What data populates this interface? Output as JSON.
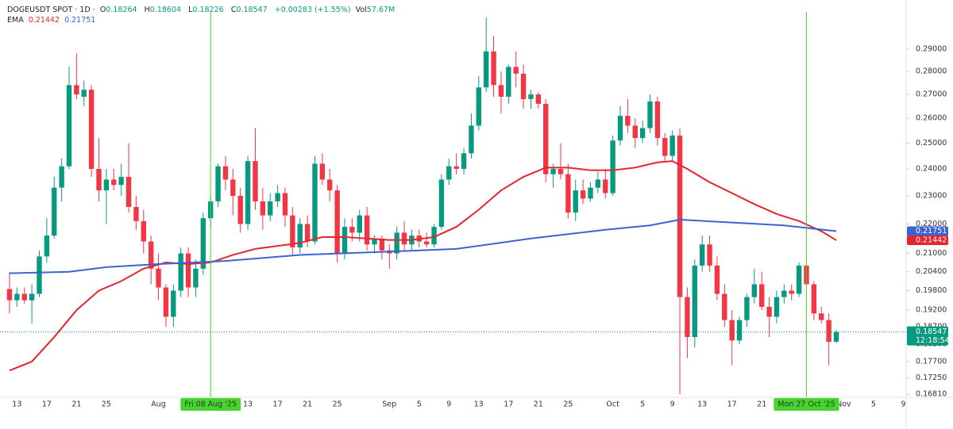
{
  "chart_data": {
    "type": "candlestick",
    "title": "DOGEUSDT SPOT · 1D ·",
    "ohlc_prefixes": [
      "O",
      "H",
      "L",
      "C"
    ],
    "change_label": "+0.00283 (+1.55%)",
    "volume_label": "Vol",
    "volume": "57.67M",
    "indicator_label": "EMA",
    "countdown": "12:18:54",
    "log_scale": true,
    "up_color": "#089981",
    "down_color": "#f23645",
    "x": [
      "2025-07-12",
      "2025-07-13",
      "2025-07-14",
      "2025-07-15",
      "2025-07-16",
      "2025-07-17",
      "2025-07-18",
      "2025-07-19",
      "2025-07-20",
      "2025-07-21",
      "2025-07-22",
      "2025-07-23",
      "2025-07-24",
      "2025-07-25",
      "2025-07-26",
      "2025-07-27",
      "2025-07-28",
      "2025-07-29",
      "2025-07-30",
      "2025-07-31",
      "2025-08-01",
      "2025-08-02",
      "2025-08-03",
      "2025-08-04",
      "2025-08-05",
      "2025-08-06",
      "2025-08-07",
      "2025-08-08",
      "2025-08-09",
      "2025-08-10",
      "2025-08-11",
      "2025-08-12",
      "2025-08-13",
      "2025-08-14",
      "2025-08-15",
      "2025-08-16",
      "2025-08-17",
      "2025-08-18",
      "2025-08-19",
      "2025-08-20",
      "2025-08-21",
      "2025-08-22",
      "2025-08-23",
      "2025-08-24",
      "2025-08-25",
      "2025-08-26",
      "2025-08-27",
      "2025-08-28",
      "2025-08-29",
      "2025-08-30",
      "2025-08-31",
      "2025-09-01",
      "2025-09-02",
      "2025-09-03",
      "2025-09-04",
      "2025-09-05",
      "2025-09-06",
      "2025-09-07",
      "2025-09-08",
      "2025-09-09",
      "2025-09-10",
      "2025-09-11",
      "2025-09-12",
      "2025-09-13",
      "2025-09-14",
      "2025-09-15",
      "2025-09-16",
      "2025-09-17",
      "2025-09-18",
      "2025-09-19",
      "2025-09-20",
      "2025-09-21",
      "2025-09-22",
      "2025-09-23",
      "2025-09-24",
      "2025-09-25",
      "2025-09-26",
      "2025-09-27",
      "2025-09-28",
      "2025-09-29",
      "2025-09-30",
      "2025-10-01",
      "2025-10-02",
      "2025-10-03",
      "2025-10-04",
      "2025-10-05",
      "2025-10-06",
      "2025-10-07",
      "2025-10-08",
      "2025-10-09",
      "2025-10-10",
      "2025-10-11",
      "2025-10-12",
      "2025-10-13",
      "2025-10-14",
      "2025-10-15",
      "2025-10-16",
      "2025-10-17",
      "2025-10-18",
      "2025-10-19",
      "2025-10-20",
      "2025-10-21",
      "2025-10-22",
      "2025-10-23",
      "2025-10-24",
      "2025-10-25",
      "2025-10-26",
      "2025-10-27",
      "2025-10-28",
      "2025-10-29",
      "2025-10-30",
      "2025-10-31"
    ],
    "open": [
      0.1985,
      0.195,
      0.197,
      0.195,
      0.197,
      0.209,
      0.216,
      0.233,
      0.241,
      0.274,
      0.269,
      0.272,
      0.24,
      0.232,
      0.236,
      0.234,
      0.237,
      0.226,
      0.221,
      0.214,
      0.205,
      0.199,
      0.19,
      0.198,
      0.21,
      0.199,
      0.205,
      0.222,
      0.228,
      0.241,
      0.236,
      0.23,
      0.22,
      0.243,
      0.228,
      0.223,
      0.228,
      0.231,
      0.223,
      0.212,
      0.22,
      0.214,
      0.242,
      0.236,
      0.232,
      0.21,
      0.219,
      0.217,
      0.223,
      0.213,
      0.215,
      0.211,
      0.21,
      0.217,
      0.213,
      0.216,
      0.214,
      0.213,
      0.219,
      0.236,
      0.241,
      0.24,
      0.246,
      0.257,
      0.273,
      0.289,
      0.274,
      0.269,
      0.282,
      0.279,
      0.268,
      0.27,
      0.266,
      0.238,
      0.24,
      0.238,
      0.224,
      0.232,
      0.229,
      0.233,
      0.236,
      0.231,
      0.251,
      0.261,
      0.257,
      0.252,
      0.256,
      0.267,
      0.252,
      0.245,
      0.253,
      0.196,
      0.184,
      0.206,
      0.213,
      0.206,
      0.197,
      0.189,
      0.183,
      0.189,
      0.196,
      0.2,
      0.193,
      0.19,
      0.196,
      0.198,
      0.197,
      0.206,
      0.2,
      0.191,
      0.189,
      0.18264
    ],
    "high": [
      0.204,
      0.199,
      0.199,
      0.2,
      0.211,
      0.222,
      0.237,
      0.244,
      0.282,
      0.288,
      0.276,
      0.274,
      0.252,
      0.24,
      0.24,
      0.242,
      0.25,
      0.23,
      0.225,
      0.216,
      0.21,
      0.2,
      0.2,
      0.212,
      0.212,
      0.208,
      0.224,
      0.23,
      0.242,
      0.245,
      0.24,
      0.233,
      0.245,
      0.256,
      0.233,
      0.231,
      0.234,
      0.233,
      0.226,
      0.222,
      0.223,
      0.245,
      0.246,
      0.24,
      0.234,
      0.222,
      0.222,
      0.225,
      0.226,
      0.216,
      0.216,
      0.213,
      0.219,
      0.221,
      0.218,
      0.218,
      0.217,
      0.22,
      0.238,
      0.244,
      0.246,
      0.248,
      0.262,
      0.278,
      0.305,
      0.296,
      0.28,
      0.283,
      0.289,
      0.283,
      0.272,
      0.271,
      0.268,
      0.242,
      0.25,
      0.242,
      0.236,
      0.236,
      0.235,
      0.239,
      0.24,
      0.253,
      0.265,
      0.268,
      0.26,
      0.259,
      0.27,
      0.269,
      0.254,
      0.255,
      0.256,
      0.199,
      0.208,
      0.216,
      0.216,
      0.209,
      0.2,
      0.192,
      0.19,
      0.197,
      0.205,
      0.204,
      0.196,
      0.198,
      0.2,
      0.2,
      0.207,
      0.207,
      0.201,
      0.193,
      0.191,
      0.18604
    ],
    "low": [
      0.191,
      0.193,
      0.194,
      0.188,
      0.196,
      0.207,
      0.215,
      0.228,
      0.24,
      0.268,
      0.265,
      0.237,
      0.228,
      0.22,
      0.232,
      0.23,
      0.224,
      0.218,
      0.21,
      0.2,
      0.195,
      0.187,
      0.187,
      0.196,
      0.196,
      0.196,
      0.203,
      0.219,
      0.226,
      0.232,
      0.223,
      0.217,
      0.218,
      0.225,
      0.218,
      0.221,
      0.226,
      0.219,
      0.209,
      0.21,
      0.212,
      0.213,
      0.234,
      0.228,
      0.207,
      0.208,
      0.214,
      0.214,
      0.211,
      0.21,
      0.208,
      0.205,
      0.208,
      0.211,
      0.211,
      0.212,
      0.212,
      0.212,
      0.218,
      0.234,
      0.238,
      0.238,
      0.244,
      0.255,
      0.271,
      0.269,
      0.262,
      0.266,
      0.273,
      0.264,
      0.264,
      0.264,
      0.235,
      0.233,
      0.236,
      0.222,
      0.221,
      0.227,
      0.228,
      0.231,
      0.229,
      0.23,
      0.249,
      0.254,
      0.248,
      0.25,
      0.254,
      0.249,
      0.243,
      0.243,
      0.1681,
      0.178,
      0.181,
      0.204,
      0.204,
      0.195,
      0.187,
      0.176,
      0.182,
      0.187,
      0.194,
      0.192,
      0.184,
      0.188,
      0.194,
      0.195,
      0.196,
      0.199,
      0.189,
      0.188,
      0.176,
      0.18226
    ],
    "close": [
      0.195,
      0.197,
      0.195,
      0.197,
      0.209,
      0.216,
      0.233,
      0.241,
      0.274,
      0.27,
      0.272,
      0.24,
      0.232,
      0.236,
      0.234,
      0.237,
      0.226,
      0.221,
      0.214,
      0.205,
      0.199,
      0.19,
      0.198,
      0.21,
      0.199,
      0.205,
      0.222,
      0.228,
      0.241,
      0.236,
      0.23,
      0.22,
      0.243,
      0.228,
      0.223,
      0.228,
      0.231,
      0.223,
      0.212,
      0.22,
      0.214,
      0.242,
      0.236,
      0.232,
      0.21,
      0.219,
      0.217,
      0.223,
      0.213,
      0.215,
      0.211,
      0.21,
      0.217,
      0.213,
      0.216,
      0.214,
      0.213,
      0.219,
      0.236,
      0.241,
      0.24,
      0.246,
      0.257,
      0.273,
      0.289,
      0.274,
      0.269,
      0.282,
      0.279,
      0.268,
      0.27,
      0.266,
      0.238,
      0.24,
      0.238,
      0.224,
      0.232,
      0.229,
      0.233,
      0.236,
      0.231,
      0.251,
      0.261,
      0.257,
      0.252,
      0.256,
      0.267,
      0.252,
      0.245,
      0.253,
      0.196,
      0.184,
      0.206,
      0.213,
      0.206,
      0.197,
      0.189,
      0.183,
      0.189,
      0.196,
      0.2,
      0.193,
      0.19,
      0.196,
      0.198,
      0.197,
      0.206,
      0.2,
      0.191,
      0.189,
      0.1826,
      0.18547
    ],
    "series": [
      {
        "color": "#e3262e",
        "x": [
          "2025-07-12",
          "2025-07-15",
          "2025-07-18",
          "2025-07-21",
          "2025-07-24",
          "2025-07-27",
          "2025-07-30",
          "2025-08-02",
          "2025-08-05",
          "2025-08-08",
          "2025-08-11",
          "2025-08-14",
          "2025-08-17",
          "2025-08-20",
          "2025-08-23",
          "2025-08-26",
          "2025-08-29",
          "2025-09-01",
          "2025-09-04",
          "2025-09-07",
          "2025-09-10",
          "2025-09-13",
          "2025-09-16",
          "2025-09-19",
          "2025-09-22",
          "2025-09-25",
          "2025-09-28",
          "2025-10-01",
          "2025-10-04",
          "2025-10-07",
          "2025-10-09",
          "2025-10-11",
          "2025-10-14",
          "2025-10-17",
          "2025-10-20",
          "2025-10-23",
          "2025-10-26",
          "2025-10-29",
          "2025-10-31"
        ],
        "values": [
          0.1745,
          0.177,
          0.184,
          0.192,
          0.198,
          0.201,
          0.205,
          0.207,
          0.2065,
          0.207,
          0.2095,
          0.2115,
          0.2125,
          0.2135,
          0.2155,
          0.2155,
          0.215,
          0.2145,
          0.2145,
          0.2155,
          0.219,
          0.225,
          0.232,
          0.237,
          0.2405,
          0.2405,
          0.2395,
          0.2395,
          0.2405,
          0.2425,
          0.243,
          0.24,
          0.235,
          0.231,
          0.227,
          0.2235,
          0.221,
          0.2175,
          0.21442
        ]
      },
      {
        "color": "#3b63d1",
        "x": [
          "2025-07-12",
          "2025-07-20",
          "2025-07-25",
          "2025-08-01",
          "2025-08-10",
          "2025-08-20",
          "2025-08-31",
          "2025-09-10",
          "2025-09-20",
          "2025-09-30",
          "2025-10-06",
          "2025-10-10",
          "2025-10-17",
          "2025-10-24",
          "2025-10-31"
        ],
        "values": [
          0.2035,
          0.204,
          0.2055,
          0.2065,
          0.2075,
          0.2095,
          0.2105,
          0.2115,
          0.215,
          0.218,
          0.2195,
          0.2215,
          0.2205,
          0.2195,
          0.21751
        ]
      }
    ],
    "markers": [
      {
        "x": "2025-08-08",
        "label": "Fri 08 Aug '25"
      },
      {
        "x": "2025-10-27",
        "label": "Mon 27 Oct '25"
      }
    ],
    "xlim": [
      "2025-07-11",
      "2025-11-09"
    ],
    "xticks": [
      {
        "value": "2025-07-13",
        "label": "13"
      },
      {
        "value": "2025-07-17",
        "label": "17"
      },
      {
        "value": "2025-07-21",
        "label": "21"
      },
      {
        "value": "2025-07-25",
        "label": "25"
      },
      {
        "value": "2025-08-01",
        "label": "Aug"
      },
      {
        "value": "2025-08-13",
        "label": "13"
      },
      {
        "value": "2025-08-17",
        "label": "17"
      },
      {
        "value": "2025-08-21",
        "label": "21"
      },
      {
        "value": "2025-08-25",
        "label": "25"
      },
      {
        "value": "2025-09-01",
        "label": "Sep"
      },
      {
        "value": "2025-09-05",
        "label": "5"
      },
      {
        "value": "2025-09-09",
        "label": "9"
      },
      {
        "value": "2025-09-13",
        "label": "13"
      },
      {
        "value": "2025-09-17",
        "label": "17"
      },
      {
        "value": "2025-09-21",
        "label": "21"
      },
      {
        "value": "2025-09-25",
        "label": "25"
      },
      {
        "value": "2025-10-01",
        "label": "Oct"
      },
      {
        "value": "2025-10-05",
        "label": "5"
      },
      {
        "value": "2025-10-09",
        "label": "9"
      },
      {
        "value": "2025-10-13",
        "label": "13"
      },
      {
        "value": "2025-10-17",
        "label": "17"
      },
      {
        "value": "2025-10-21",
        "label": "21"
      },
      {
        "value": "2025-11-01",
        "label": "Nov"
      },
      {
        "value": "2025-11-05",
        "label": "5"
      },
      {
        "value": "2025-11-09",
        "label": "9"
      }
    ],
    "ylim": [
      0.1675,
      0.3076
    ],
    "yticks": [
      {
        "value": 0.29,
        "label": "0.29000"
      },
      {
        "value": 0.28,
        "label": "0.28000"
      },
      {
        "value": 0.27,
        "label": "0.27000"
      },
      {
        "value": 0.26,
        "label": "0.26000"
      },
      {
        "value": 0.25,
        "label": "0.25000"
      },
      {
        "value": 0.24,
        "label": "0.24000"
      },
      {
        "value": 0.23,
        "label": "0.23000"
      },
      {
        "value": 0.22,
        "label": "0.22000"
      },
      {
        "value": 0.21,
        "label": "0.21000"
      },
      {
        "value": 0.204,
        "label": "0.20400"
      },
      {
        "value": 0.198,
        "label": "0.19800"
      },
      {
        "value": 0.192,
        "label": "0.19200"
      },
      {
        "value": 0.187,
        "label": "0.18700"
      },
      {
        "value": 0.182,
        "label": "0.18200"
      },
      {
        "value": 0.177,
        "label": "0.17700"
      },
      {
        "value": 0.1725,
        "label": "0.17250"
      },
      {
        "value": 0.1681,
        "label": "0.16810"
      }
    ]
  }
}
